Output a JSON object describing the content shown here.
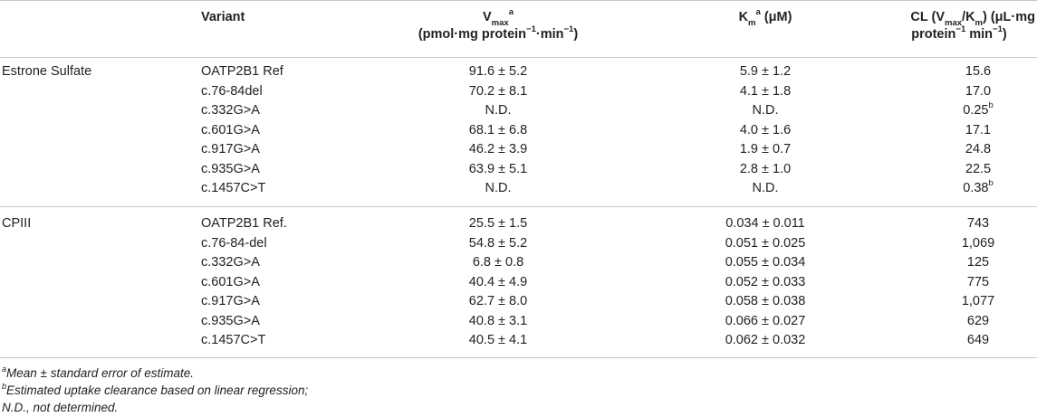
{
  "header": {
    "variant": "Variant",
    "vmax_sym": "V",
    "vmax_sub": "max",
    "vmax_sup": "a",
    "vmax_unit_a": "(pmol·mg protein",
    "vmax_unit_sup1": "−1",
    "vmax_unit_b": "·min",
    "vmax_unit_sup2": "−1",
    "vmax_unit_c": ")",
    "km_sym": "K",
    "km_sub": "m",
    "km_sup": "a",
    "km_unit": " (μM)",
    "cl_a": "CL (V",
    "cl_sub1": "max",
    "cl_b": "/K",
    "cl_sub2": "m",
    "cl_c": ") (μL·mg",
    "cl_line2_a": "protein",
    "cl_line2_sup1": "−1",
    "cl_line2_b": " min",
    "cl_line2_sup2": "−1",
    "cl_line2_c": ")"
  },
  "groups": [
    {
      "label": "Estrone Sulfate",
      "rows": [
        {
          "variant": "OATP2B1 Ref",
          "vmax": "91.6 ± 5.2",
          "km": "5.9 ± 1.2",
          "cl": "15.6",
          "cl_sup": ""
        },
        {
          "variant": "c.76-84del",
          "vmax": "70.2 ± 8.1",
          "km": "4.1 ± 1.8",
          "cl": "17.0",
          "cl_sup": ""
        },
        {
          "variant": "c.332G>A",
          "vmax": "N.D.",
          "km": "N.D.",
          "cl": "0.25",
          "cl_sup": "b"
        },
        {
          "variant": "c.601G>A",
          "vmax": "68.1 ± 6.8",
          "km": "4.0 ± 1.6",
          "cl": "17.1",
          "cl_sup": ""
        },
        {
          "variant": "c.917G>A",
          "vmax": "46.2 ± 3.9",
          "km": "1.9 ± 0.7",
          "cl": "24.8",
          "cl_sup": ""
        },
        {
          "variant": "c.935G>A",
          "vmax": "63.9 ± 5.1",
          "km": "2.8 ± 1.0",
          "cl": "22.5",
          "cl_sup": ""
        },
        {
          "variant": "c.1457C>T",
          "vmax": "N.D.",
          "km": "N.D.",
          "cl": "0.38",
          "cl_sup": "b"
        }
      ]
    },
    {
      "label": "CPIII",
      "rows": [
        {
          "variant": "OATP2B1 Ref.",
          "vmax": "25.5 ± 1.5",
          "km": "0.034 ± 0.011",
          "cl": "743",
          "cl_sup": ""
        },
        {
          "variant": "c.76-84-del",
          "vmax": "54.8 ± 5.2",
          "km": "0.051 ± 0.025",
          "cl": "1,069",
          "cl_sup": ""
        },
        {
          "variant": "c.332G>A",
          "vmax": "6.8 ± 0.8",
          "km": "0.055 ± 0.034",
          "cl": "125",
          "cl_sup": ""
        },
        {
          "variant": "c.601G>A",
          "vmax": "40.4 ± 4.9",
          "km": "0.052 ± 0.033",
          "cl": "775",
          "cl_sup": ""
        },
        {
          "variant": "c.917G>A",
          "vmax": "62.7 ± 8.0",
          "km": "0.058 ± 0.038",
          "cl": "1,077",
          "cl_sup": ""
        },
        {
          "variant": "c.935G>A",
          "vmax": "40.8 ± 3.1",
          "km": "0.066 ± 0.027",
          "cl": "629",
          "cl_sup": ""
        },
        {
          "variant": "c.1457C>T",
          "vmax": "40.5 ± 4.1",
          "km": "0.062 ± 0.032",
          "cl": "649",
          "cl_sup": ""
        }
      ]
    }
  ],
  "footnotes": {
    "a_sup": "a",
    "a_text": "Mean ± standard error of estimate.",
    "b_sup": "b",
    "b_text": "Estimated uptake clearance based on linear regression;",
    "nd_text": "N.D., not determined."
  }
}
